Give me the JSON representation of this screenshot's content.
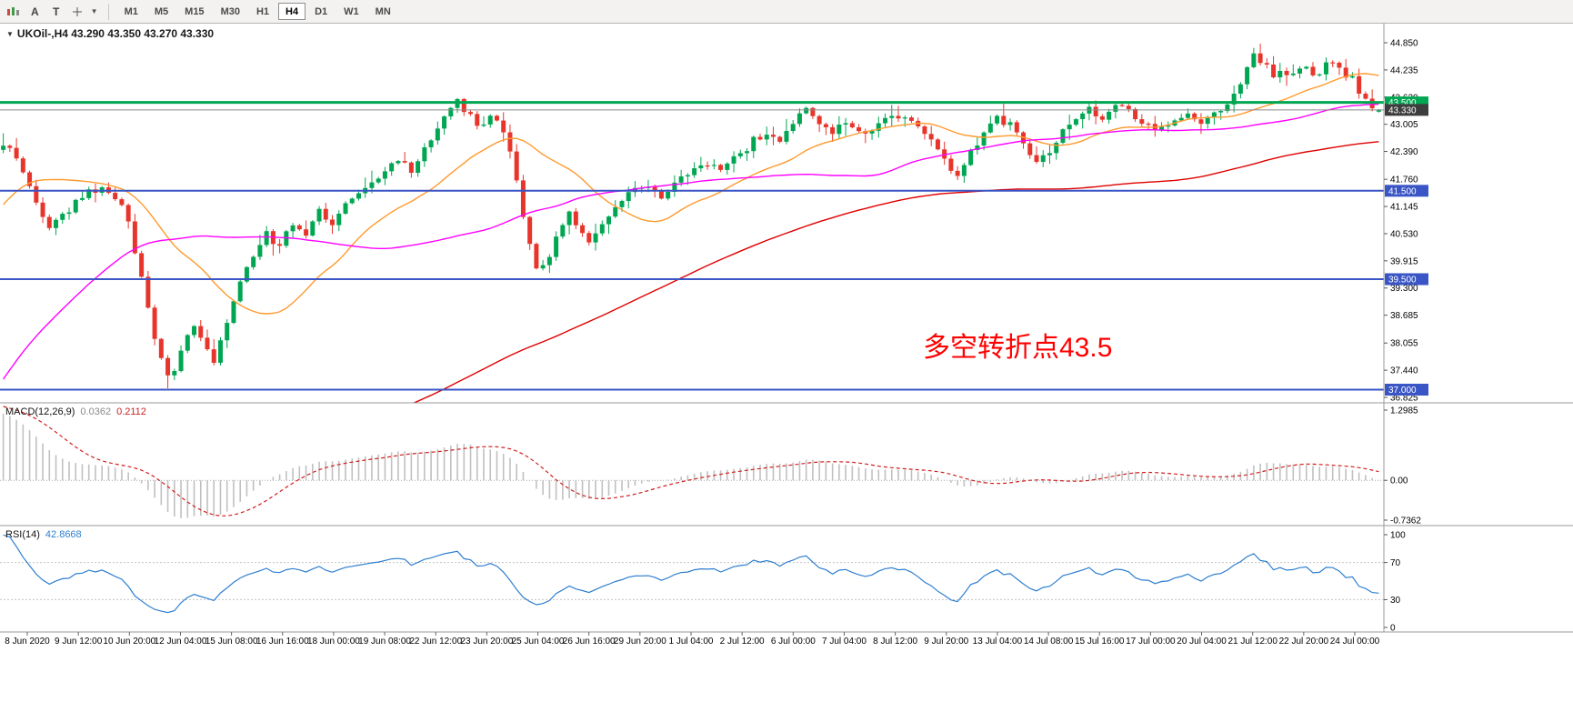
{
  "toolbar": {
    "tool_buttons": [
      "A",
      "T"
    ],
    "timeframes": [
      "M1",
      "M5",
      "M15",
      "M30",
      "H1",
      "H4",
      "D1",
      "W1",
      "MN"
    ],
    "active_timeframe": "H4"
  },
  "chart": {
    "title": "UKOil-,H4 43.290 43.350 43.270 43.330",
    "symbol": "UKOil-",
    "period": "H4",
    "ohlc": {
      "open": "43.290",
      "high": "43.350",
      "low": "43.270",
      "close": "43.330"
    },
    "annotation": {
      "text": "多空转折点43.5",
      "color": "#ff0000"
    },
    "y_axis_labels": [
      "44.850",
      "44.235",
      "43.620",
      "43.005",
      "42.390",
      "41.760",
      "41.145",
      "40.530",
      "39.915",
      "39.300",
      "38.685",
      "38.055",
      "37.440",
      "36.825"
    ],
    "x_axis_labels": [
      "8 Jun 2020",
      "9 Jun 12:00",
      "10 Jun 20:00",
      "12 Jun 04:00",
      "15 Jun 08:00",
      "16 Jun 16:00",
      "18 Jun 00:00",
      "19 Jun 08:00",
      "22 Jun 12:00",
      "23 Jun 20:00",
      "25 Jun 04:00",
      "26 Jun 16:00",
      "29 Jun 20:00",
      "1 Jul 04:00",
      "2 Jul 12:00",
      "6 Jul 00:00",
      "7 Jul 04:00",
      "8 Jul 12:00",
      "9 Jul 20:00",
      "13 Jul 04:00",
      "14 Jul 08:00",
      "15 Jul 16:00",
      "17 Jul 00:00",
      "20 Jul 04:00",
      "21 Jul 12:00",
      "22 Jul 20:00",
      "24 Jul 00:00"
    ],
    "levels": [
      {
        "price": 43.5,
        "label": "43.500",
        "line_color": "#00a651",
        "badge_color": "#00a651",
        "width": 3
      },
      {
        "price": 43.33,
        "label": "43.330",
        "line_color": "#8a8a8a",
        "badge_color": "#3d3d3d",
        "width": 1
      },
      {
        "price": 41.5,
        "label": "41.500",
        "line_color": "#3a55c5",
        "badge_color": "#3a55c5",
        "width": 2
      },
      {
        "price": 39.5,
        "label": "39.500",
        "line_color": "#3a55c5",
        "badge_color": "#3a55c5",
        "width": 2
      },
      {
        "price": 37.0,
        "label": "37.000",
        "line_color": "#3a55c5",
        "badge_color": "#3a55c5",
        "width": 2
      }
    ],
    "colors": {
      "up": "#00a651",
      "down": "#e8352b",
      "ma_fast": "#ff9a2e",
      "ma_mid": "#ff00ff",
      "ma_slow": "#e00000",
      "background": "#ffffff",
      "axis_text": "#000000",
      "level_blue": "#3a55c5"
    }
  },
  "indicators": {
    "macd": {
      "label": "MACD(12,26,9)",
      "value_main": "0.0362",
      "value_signal": "0.2112",
      "scale_labels": [
        "1.2985",
        "0.00",
        "-0.7362"
      ],
      "scale_max": 1.2985,
      "scale_min": -0.7362,
      "fast": 12,
      "slow": 26,
      "signal": 9,
      "hist_color": "#c0c0c0",
      "signal_color": "#d02020"
    },
    "rsi": {
      "label": "RSI(14)",
      "value": "42.8668",
      "period": 14,
      "scale_labels": [
        "100",
        "70",
        "30",
        "0"
      ],
      "levels": [
        70,
        30
      ],
      "line_color": "#2f7fd0"
    }
  },
  "chart_data": {
    "type": "candlestick",
    "symbol": "UKOil-",
    "timeframe": "H4",
    "date_range": "8 Jun 2020 - 24 Jul 2020",
    "visible_candles": 210,
    "price_axis_range": [
      36.7,
      45.0
    ],
    "last_ohlc": {
      "open": 43.29,
      "high": 43.35,
      "low": 43.27,
      "close": 43.33
    },
    "key_levels": {
      "pivot": 43.5,
      "support": [
        41.5,
        39.5,
        37.0
      ]
    },
    "moving_averages": [
      {
        "period": 21,
        "color": "#ff9a2e"
      },
      {
        "period": 55,
        "color": "#ff00ff"
      },
      {
        "period": 160,
        "color": "#e00000"
      }
    ],
    "prehistory_anchors": [
      [
        -1.1,
        42.2
      ],
      [
        -0.95,
        41.5
      ],
      [
        -0.8,
        40.0
      ],
      [
        -0.65,
        37.0
      ],
      [
        -0.52,
        33.5
      ],
      [
        -0.42,
        31.0
      ],
      [
        -0.33,
        29.8
      ],
      [
        -0.26,
        30.5
      ],
      [
        -0.19,
        34.5
      ],
      [
        -0.13,
        37.0
      ],
      [
        -0.08,
        40.0
      ],
      [
        -0.04,
        41.8
      ],
      [
        -0.01,
        42.4
      ]
    ],
    "price_anchors": [
      [
        0.0,
        42.6
      ],
      [
        0.01,
        42.25
      ],
      [
        0.022,
        41.4
      ],
      [
        0.032,
        40.7
      ],
      [
        0.042,
        40.95
      ],
      [
        0.052,
        41.2
      ],
      [
        0.062,
        41.45
      ],
      [
        0.072,
        41.6
      ],
      [
        0.08,
        41.4
      ],
      [
        0.088,
        41.0
      ],
      [
        0.096,
        40.1
      ],
      [
        0.104,
        38.9
      ],
      [
        0.112,
        37.8
      ],
      [
        0.12,
        37.2
      ],
      [
        0.128,
        37.8
      ],
      [
        0.136,
        38.45
      ],
      [
        0.144,
        38.1
      ],
      [
        0.152,
        37.65
      ],
      [
        0.16,
        38.3
      ],
      [
        0.17,
        39.3
      ],
      [
        0.18,
        40.0
      ],
      [
        0.19,
        40.55
      ],
      [
        0.198,
        40.2
      ],
      [
        0.208,
        40.8
      ],
      [
        0.218,
        40.45
      ],
      [
        0.228,
        41.1
      ],
      [
        0.238,
        40.75
      ],
      [
        0.248,
        41.2
      ],
      [
        0.258,
        41.5
      ],
      [
        0.268,
        41.7
      ],
      [
        0.278,
        42.05
      ],
      [
        0.286,
        42.2
      ],
      [
        0.294,
        41.95
      ],
      [
        0.304,
        42.35
      ],
      [
        0.314,
        42.9
      ],
      [
        0.324,
        43.45
      ],
      [
        0.33,
        43.55
      ],
      [
        0.338,
        43.15
      ],
      [
        0.346,
        42.95
      ],
      [
        0.354,
        43.3
      ],
      [
        0.362,
        42.85
      ],
      [
        0.37,
        41.9
      ],
      [
        0.378,
        40.6
      ],
      [
        0.386,
        39.75
      ],
      [
        0.394,
        39.95
      ],
      [
        0.402,
        40.55
      ],
      [
        0.41,
        41.0
      ],
      [
        0.418,
        40.55
      ],
      [
        0.426,
        40.35
      ],
      [
        0.436,
        40.75
      ],
      [
        0.446,
        41.2
      ],
      [
        0.456,
        41.5
      ],
      [
        0.466,
        41.6
      ],
      [
        0.476,
        41.35
      ],
      [
        0.488,
        41.7
      ],
      [
        0.5,
        41.95
      ],
      [
        0.51,
        42.15
      ],
      [
        0.52,
        41.9
      ],
      [
        0.53,
        42.25
      ],
      [
        0.54,
        42.55
      ],
      [
        0.552,
        42.85
      ],
      [
        0.562,
        42.65
      ],
      [
        0.572,
        43.05
      ],
      [
        0.58,
        43.4
      ],
      [
        0.59,
        43.05
      ],
      [
        0.6,
        42.85
      ],
      [
        0.612,
        43.05
      ],
      [
        0.622,
        42.75
      ],
      [
        0.632,
        42.95
      ],
      [
        0.642,
        43.1
      ],
      [
        0.652,
        43.2
      ],
      [
        0.662,
        42.95
      ],
      [
        0.672,
        42.6
      ],
      [
        0.682,
        42.15
      ],
      [
        0.69,
        41.8
      ],
      [
        0.698,
        42.2
      ],
      [
        0.708,
        42.8
      ],
      [
        0.718,
        43.1
      ],
      [
        0.728,
        43.05
      ],
      [
        0.738,
        42.55
      ],
      [
        0.748,
        42.05
      ],
      [
        0.756,
        42.3
      ],
      [
        0.766,
        42.85
      ],
      [
        0.776,
        43.15
      ],
      [
        0.786,
        43.3
      ],
      [
        0.796,
        43.15
      ],
      [
        0.806,
        43.4
      ],
      [
        0.816,
        43.25
      ],
      [
        0.826,
        43.0
      ],
      [
        0.836,
        42.85
      ],
      [
        0.846,
        43.1
      ],
      [
        0.856,
        43.2
      ],
      [
        0.866,
        43.05
      ],
      [
        0.876,
        43.2
      ],
      [
        0.886,
        43.4
      ],
      [
        0.896,
        44.0
      ],
      [
        0.904,
        44.55
      ],
      [
        0.912,
        44.4
      ],
      [
        0.92,
        44.1
      ],
      [
        0.93,
        44.15
      ],
      [
        0.94,
        44.3
      ],
      [
        0.948,
        44.05
      ],
      [
        0.958,
        44.4
      ],
      [
        0.966,
        44.3
      ],
      [
        0.976,
        44.05
      ],
      [
        0.984,
        43.6
      ],
      [
        0.992,
        43.4
      ],
      [
        1.0,
        43.33
      ]
    ]
  }
}
